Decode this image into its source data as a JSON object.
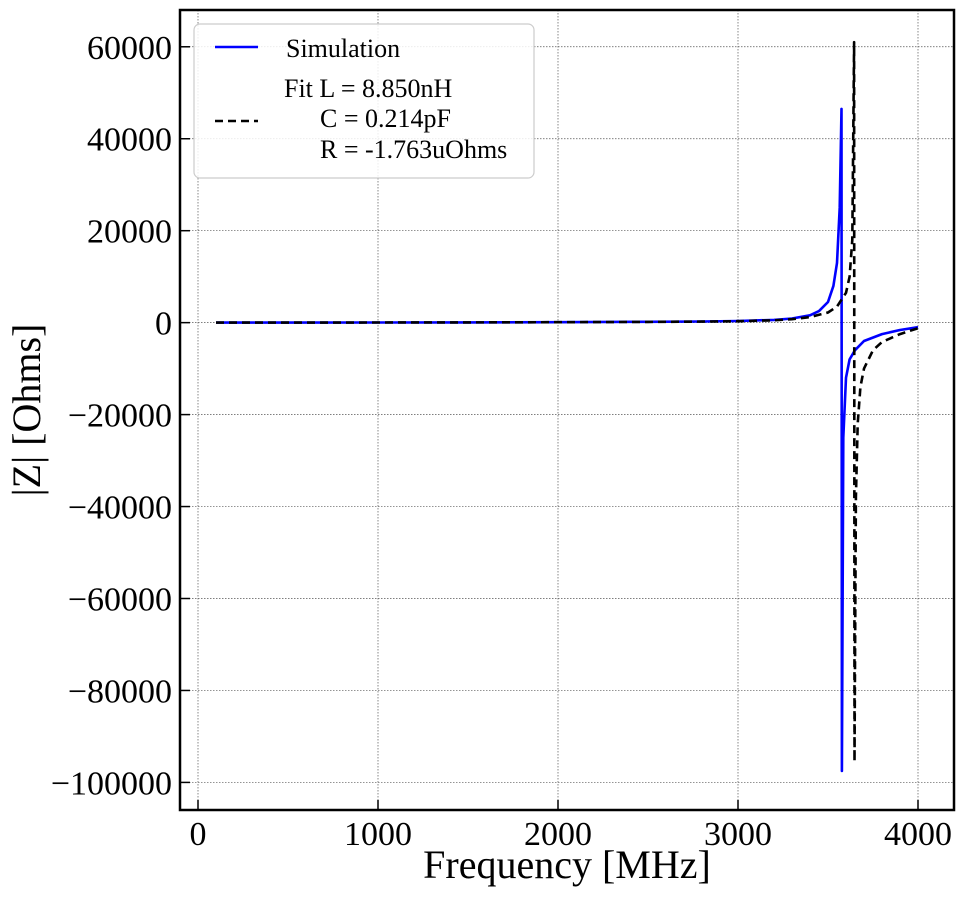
{
  "chart_data": {
    "type": "line",
    "xlabel": "Frequency [MHz]",
    "ylabel": "|Z| [Ohms]",
    "xlim": [
      -100,
      4200
    ],
    "ylim": [
      -106000,
      68000
    ],
    "x_ticks": [
      0,
      1000,
      2000,
      3000,
      4000
    ],
    "x_tick_labels": [
      "0",
      "1000",
      "2000",
      "3000",
      "4000"
    ],
    "y_ticks": [
      60000,
      40000,
      20000,
      0,
      -20000,
      -40000,
      -60000,
      -80000,
      -100000
    ],
    "y_tick_labels": [
      "60000",
      "40000",
      "20000",
      "0",
      "−20000",
      "−40000",
      "−60000",
      "−80000",
      "−100000"
    ],
    "grid": true,
    "legend_position": "top-left",
    "legend": [
      {
        "label_lines": [
          "Simulation"
        ],
        "style": "solid",
        "color": "#0000ff"
      },
      {
        "label_lines": [
          "Fit L = 8.850nH",
          "C = 0.214pF",
          "R = -1.763uOhms"
        ],
        "style": "dashed",
        "color": "#000000"
      }
    ],
    "series": [
      {
        "name": "Simulation",
        "color": "#0000ff",
        "style": "solid",
        "points": [
          [
            100,
            0
          ],
          [
            500,
            10
          ],
          [
            1000,
            30
          ],
          [
            1500,
            60
          ],
          [
            2000,
            100
          ],
          [
            2500,
            180
          ],
          [
            2800,
            250
          ],
          [
            3000,
            350
          ],
          [
            3200,
            600
          ],
          [
            3300,
            900
          ],
          [
            3400,
            1600
          ],
          [
            3450,
            2500
          ],
          [
            3500,
            4500
          ],
          [
            3530,
            8000
          ],
          [
            3550,
            13000
          ],
          [
            3565,
            25000
          ],
          [
            3575,
            46500
          ],
          [
            3577,
            -97500
          ],
          [
            3585,
            -25000
          ],
          [
            3600,
            -12000
          ],
          [
            3620,
            -8000
          ],
          [
            3650,
            -6000
          ],
          [
            3700,
            -4000
          ],
          [
            3800,
            -2500
          ],
          [
            3900,
            -1600
          ],
          [
            4000,
            -1000
          ]
        ]
      },
      {
        "name": "Fit",
        "color": "#000000",
        "style": "dashed",
        "points": [
          [
            100,
            0
          ],
          [
            500,
            10
          ],
          [
            1000,
            30
          ],
          [
            1500,
            60
          ],
          [
            2000,
            100
          ],
          [
            2500,
            170
          ],
          [
            2800,
            230
          ],
          [
            3000,
            320
          ],
          [
            3200,
            500
          ],
          [
            3300,
            750
          ],
          [
            3400,
            1200
          ],
          [
            3500,
            2200
          ],
          [
            3550,
            3500
          ],
          [
            3600,
            6500
          ],
          [
            3620,
            10000
          ],
          [
            3635,
            18000
          ],
          [
            3645,
            61000
          ],
          [
            3647,
            -95500
          ],
          [
            3655,
            -38000
          ],
          [
            3665,
            -22000
          ],
          [
            3680,
            -14000
          ],
          [
            3700,
            -10000
          ],
          [
            3750,
            -6000
          ],
          [
            3800,
            -4200
          ],
          [
            3900,
            -2500
          ],
          [
            4000,
            -1200
          ]
        ]
      }
    ]
  }
}
